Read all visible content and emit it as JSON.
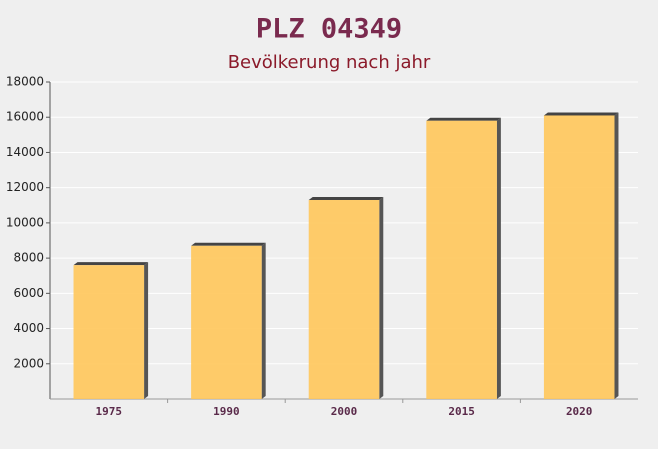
{
  "chart_data": {
    "type": "bar",
    "title": "PLZ 04349",
    "subtitle": "Bevölkerung nach jahr",
    "categories": [
      "1975",
      "1990",
      "2000",
      "2015",
      "2020"
    ],
    "values": [
      7600,
      8700,
      11300,
      15800,
      16100
    ],
    "color": "#ffc65a",
    "ylim": [
      0,
      18000
    ],
    "yticks": [
      2000,
      4000,
      6000,
      8000,
      10000,
      12000,
      14000,
      16000,
      18000
    ],
    "grid": true
  }
}
